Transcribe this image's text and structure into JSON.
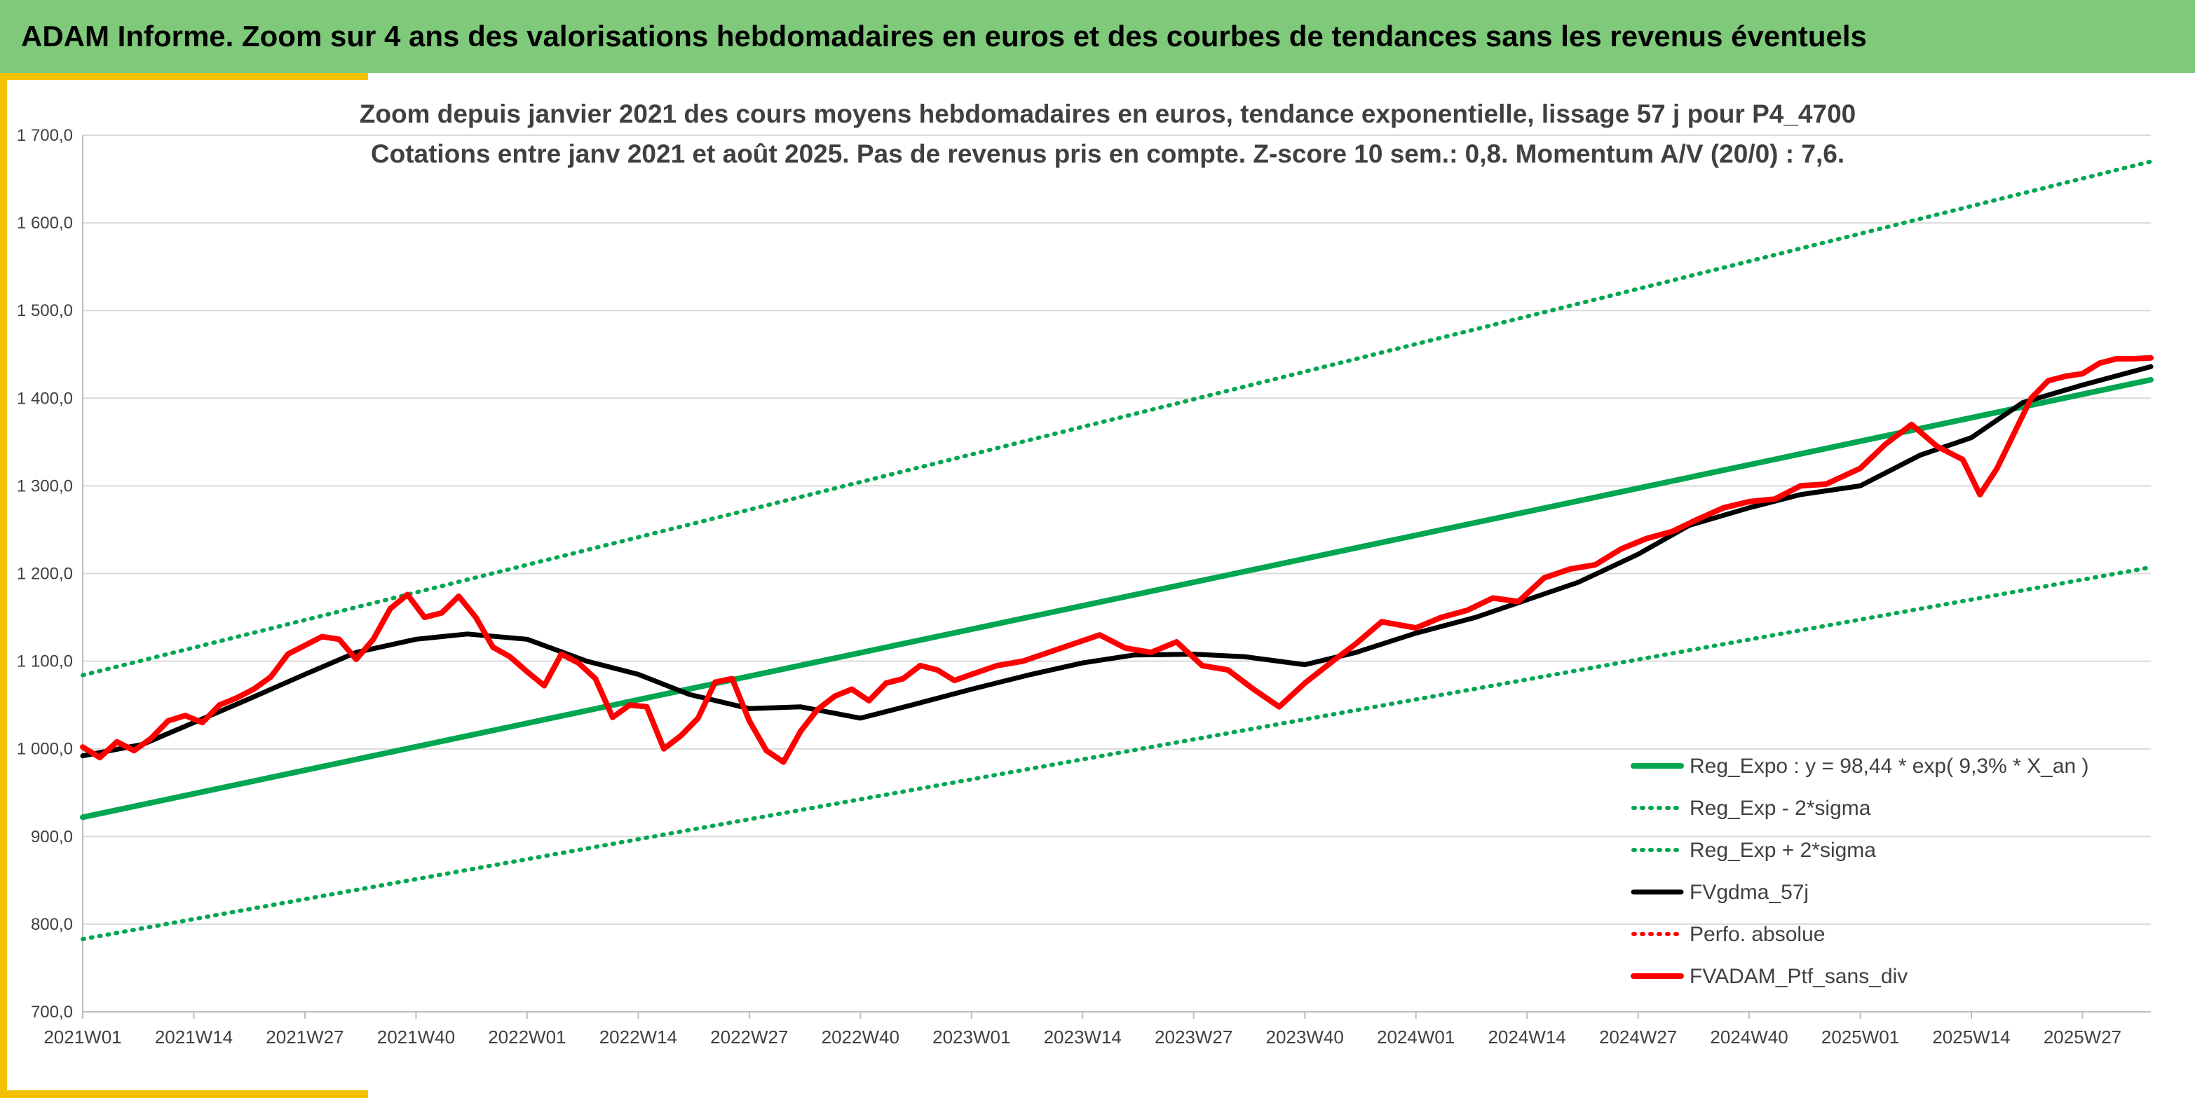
{
  "banner": {
    "title": "ADAM Informe. Zoom sur 4 ans des valorisations hebdomadaires en euros et des courbes de tendances sans les revenus éventuels"
  },
  "colors": {
    "banner": "#7fc97a",
    "frame": "#f2c200",
    "regression": "#00a651",
    "smoothed": "#000000",
    "portfolio": "#ff0000"
  },
  "chart_data": {
    "type": "line",
    "title": [
      "Zoom depuis janvier 2021 des cours moyens hebdomadaires en euros, tendance exponentielle, lissage 57 j pour P4_4700",
      "Cotations entre janv 2021 et août 2025. Pas de revenus pris en compte. Z-score 10 sem.: 0,8. Momentum A/V (20/0) : 7,6."
    ],
    "xlabel": "",
    "ylabel": "",
    "ylim": [
      700,
      1700
    ],
    "yticks": [
      "700,0",
      "800,0",
      "900,0",
      "1 000,0",
      "1 100,0",
      "1 200,0",
      "1 300,0",
      "1 400,0",
      "1 500,0",
      "1 600,0",
      "1 700,0"
    ],
    "x_range": [
      "2021W01",
      "2025W35"
    ],
    "xticks": [
      "2021W01",
      "2021W14",
      "2021W27",
      "2021W40",
      "2022W01",
      "2022W14",
      "2022W27",
      "2022W40",
      "2023W01",
      "2023W14",
      "2023W27",
      "2023W40",
      "2024W01",
      "2024W14",
      "2024W27",
      "2024W40",
      "2025W01",
      "2025W14",
      "2025W27"
    ],
    "grid": "horizontal",
    "legend_position": "bottom-right",
    "series": [
      {
        "name": "Reg_Expo : y = 98,44 * exp( 9,3% *  X_an )",
        "style": "solid",
        "x": [
          "2021W01",
          "2025W35"
        ],
        "values": [
          922,
          1421
        ]
      },
      {
        "name": "Reg_Exp - 2*sigma",
        "style": "dotted",
        "x": [
          "2021W01",
          "2025W35"
        ],
        "values": [
          783,
          1207
        ]
      },
      {
        "name": "Reg_Exp + 2*sigma",
        "style": "dotted",
        "x": [
          "2021W01",
          "2025W35"
        ],
        "values": [
          1084,
          1670
        ]
      },
      {
        "name": "FVgdma_57j",
        "style": "solid",
        "x": [
          "2021W01",
          "2021W08",
          "2021W14",
          "2021W20",
          "2021W27",
          "2021W33",
          "2021W40",
          "2021W46",
          "2022W01",
          "2022W08",
          "2022W14",
          "2022W20",
          "2022W27",
          "2022W33",
          "2022W40",
          "2022W46",
          "2023W01",
          "2023W08",
          "2023W14",
          "2023W20",
          "2023W27",
          "2023W33",
          "2023W40",
          "2023W46",
          "2024W01",
          "2024W08",
          "2024W14",
          "2024W20",
          "2024W27",
          "2024W33",
          "2024W40",
          "2024W46",
          "2025W01",
          "2025W08",
          "2025W14",
          "2025W20",
          "2025W27",
          "2025W35"
        ],
        "values": [
          992,
          1005,
          1030,
          1055,
          1085,
          1110,
          1125,
          1131,
          1125,
          1100,
          1085,
          1062,
          1046,
          1048,
          1035,
          1050,
          1068,
          1085,
          1098,
          1107,
          1108,
          1105,
          1096,
          1110,
          1132,
          1150,
          1170,
          1190,
          1222,
          1255,
          1275,
          1290,
          1300,
          1335,
          1355,
          1395,
          1415,
          1436
        ]
      },
      {
        "name": "Perfo. absolue",
        "style": "dotted",
        "x": [],
        "values": []
      },
      {
        "name": "FVADAM_Ptf_sans_div",
        "style": "solid",
        "x": [
          "2021W01",
          "2021W03",
          "2021W05",
          "2021W07",
          "2021W09",
          "2021W11",
          "2021W13",
          "2021W15",
          "2021W17",
          "2021W19",
          "2021W21",
          "2021W23",
          "2021W25",
          "2021W27",
          "2021W29",
          "2021W31",
          "2021W33",
          "2021W35",
          "2021W37",
          "2021W39",
          "2021W41",
          "2021W43",
          "2021W45",
          "2021W47",
          "2021W49",
          "2021W51",
          "2022W01",
          "2022W03",
          "2022W05",
          "2022W07",
          "2022W09",
          "2022W11",
          "2022W13",
          "2022W15",
          "2022W17",
          "2022W19",
          "2022W21",
          "2022W23",
          "2022W25",
          "2022W27",
          "2022W29",
          "2022W31",
          "2022W33",
          "2022W35",
          "2022W37",
          "2022W39",
          "2022W41",
          "2022W43",
          "2022W45",
          "2022W47",
          "2022W49",
          "2022W51",
          "2023W01",
          "2023W04",
          "2023W07",
          "2023W10",
          "2023W13",
          "2023W16",
          "2023W19",
          "2023W22",
          "2023W25",
          "2023W28",
          "2023W31",
          "2023W34",
          "2023W37",
          "2023W40",
          "2023W43",
          "2023W46",
          "2023W49",
          "2024W01",
          "2024W04",
          "2024W07",
          "2024W10",
          "2024W13",
          "2024W16",
          "2024W19",
          "2024W22",
          "2024W25",
          "2024W28",
          "2024W31",
          "2024W34",
          "2024W37",
          "2024W40",
          "2024W43",
          "2024W46",
          "2024W49",
          "2025W01",
          "2025W04",
          "2025W07",
          "2025W10",
          "2025W13",
          "2025W15",
          "2025W17",
          "2025W19",
          "2025W21",
          "2025W23",
          "2025W25",
          "2025W27",
          "2025W29",
          "2025W31",
          "2025W33",
          "2025W35"
        ],
        "values": [
          1002,
          990,
          1008,
          998,
          1012,
          1032,
          1038,
          1030,
          1050,
          1058,
          1068,
          1082,
          1108,
          1118,
          1128,
          1125,
          1102,
          1125,
          1160,
          1176,
          1150,
          1155,
          1174,
          1150,
          1116,
          1105,
          1088,
          1072,
          1108,
          1098,
          1080,
          1036,
          1050,
          1048,
          1000,
          1015,
          1035,
          1076,
          1080,
          1032,
          998,
          985,
          1020,
          1045,
          1060,
          1068,
          1055,
          1075,
          1080,
          1095,
          1090,
          1078,
          1085,
          1095,
          1100,
          1110,
          1120,
          1130,
          1115,
          1110,
          1122,
          1095,
          1090,
          1068,
          1048,
          1075,
          1098,
          1120,
          1145,
          1138,
          1150,
          1158,
          1172,
          1168,
          1195,
          1205,
          1210,
          1228,
          1240,
          1248,
          1262,
          1275,
          1282,
          1285,
          1300,
          1302,
          1320,
          1348,
          1370,
          1345,
          1330,
          1290,
          1320,
          1360,
          1400,
          1420,
          1425,
          1428,
          1440,
          1445,
          1445,
          1446
        ]
      }
    ]
  }
}
